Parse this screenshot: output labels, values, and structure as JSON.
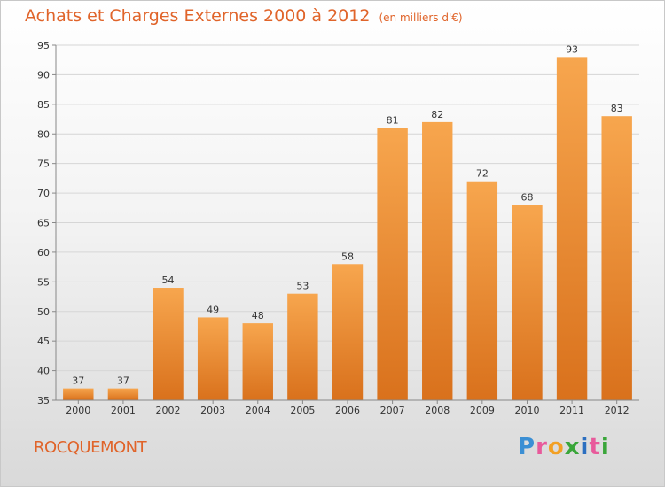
{
  "header": {
    "title": "Achats et Charges Externes 2000 à 2012",
    "unit": "(en milliers d'€)"
  },
  "footer": {
    "commune": "ROCQUEMONT",
    "logo_letters": [
      "P",
      "r",
      "o",
      "x",
      "i",
      "t",
      "i"
    ],
    "logo_colors": [
      "#3b8fd4",
      "#e85a9b",
      "#f2a024",
      "#3aa63a",
      "#2c6fc0",
      "#e85a9b",
      "#3aa63a"
    ]
  },
  "colors": {
    "bar_light": "#f7a64e",
    "bar_dark": "#d9711c",
    "grid": "#d6d6d6",
    "axis": "#888888",
    "accent": "#e0642a"
  },
  "chart_data": {
    "type": "bar",
    "title": "Achats et Charges Externes 2000 à 2012",
    "subtitle": "(en milliers d'€)",
    "xlabel": "",
    "ylabel": "",
    "categories": [
      "2000",
      "2001",
      "2002",
      "2003",
      "2004",
      "2005",
      "2006",
      "2007",
      "2008",
      "2009",
      "2010",
      "2011",
      "2012"
    ],
    "values": [
      37,
      37,
      54,
      49,
      48,
      53,
      58,
      81,
      82,
      72,
      68,
      93,
      83
    ],
    "ylim": [
      35,
      95
    ],
    "yticks": [
      35,
      40,
      45,
      50,
      55,
      60,
      65,
      70,
      75,
      80,
      85,
      90,
      95
    ],
    "grid": true,
    "legend": "none"
  }
}
